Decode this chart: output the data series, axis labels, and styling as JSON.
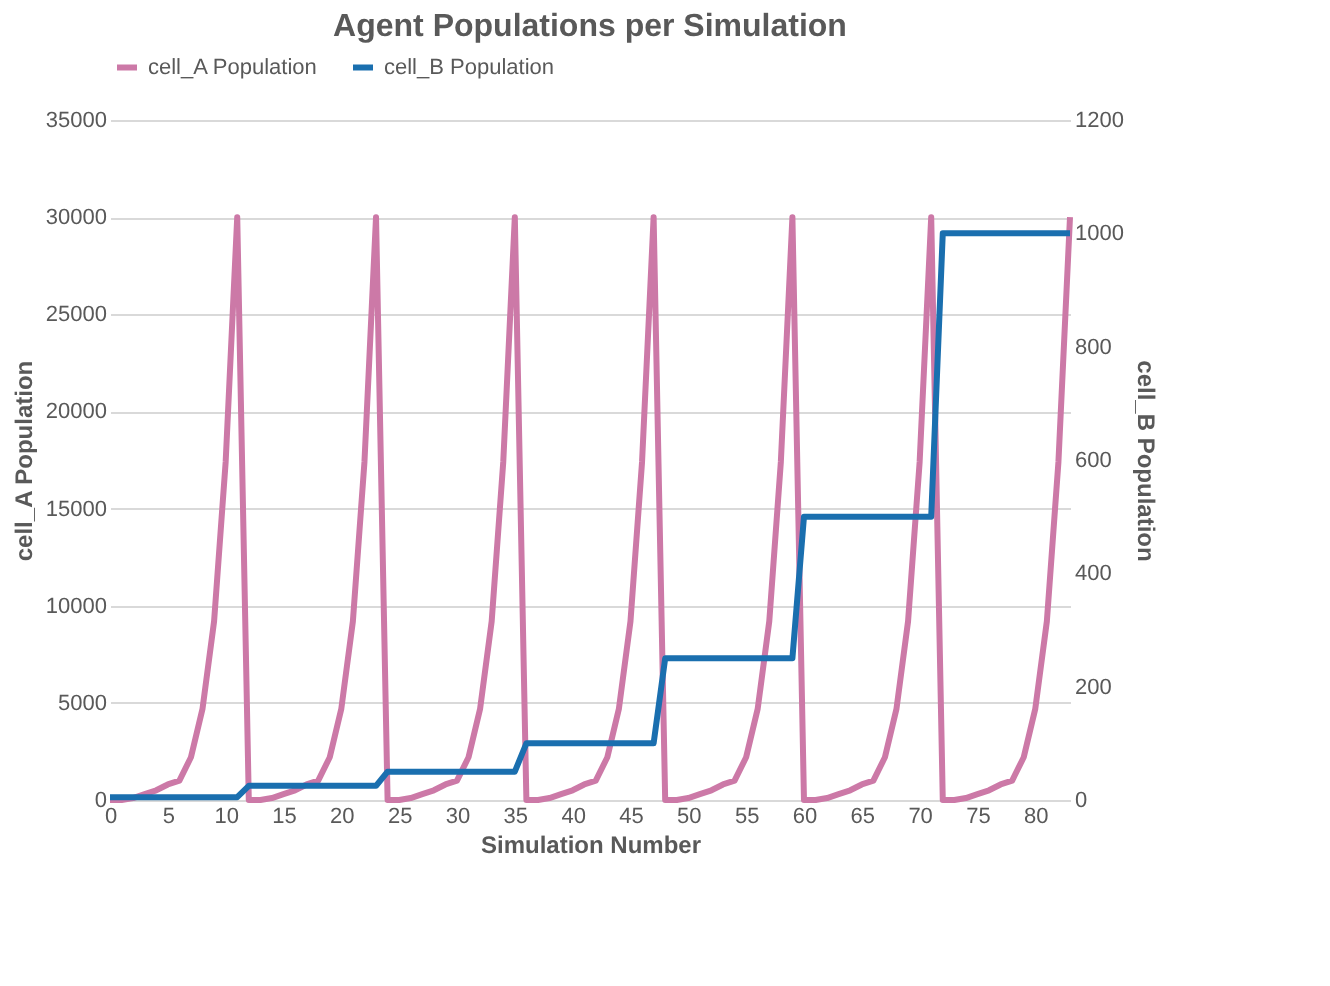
{
  "chart_data": {
    "type": "line",
    "title": "Agent Populations per Simulation",
    "xlabel": "Simulation Number",
    "ylabel": "cell_A Population",
    "y2label": "cell_B Population",
    "x": [
      0,
      1,
      2,
      3,
      4,
      5,
      6,
      7,
      8,
      9,
      10,
      11,
      12,
      13,
      14,
      15,
      16,
      17,
      18,
      19,
      20,
      21,
      22,
      23,
      24,
      25,
      26,
      27,
      28,
      29,
      30,
      31,
      32,
      33,
      34,
      35,
      36,
      37,
      38,
      39,
      40,
      41,
      42,
      43,
      44,
      45,
      46,
      47,
      48,
      49,
      50,
      51,
      52,
      53,
      54,
      55,
      56,
      57,
      58,
      59,
      60,
      61,
      62,
      63,
      64,
      65,
      66,
      67,
      68,
      69,
      70,
      71,
      72,
      73,
      74,
      75,
      76,
      77,
      78,
      79,
      80,
      81,
      82,
      83
    ],
    "series": [
      {
        "name": "cell_A Population",
        "color": "#cc79a7",
        "values": [
          0,
          0,
          100,
          300,
          500,
          800,
          1000,
          2200,
          4700,
          9200,
          17400,
          30000,
          0,
          0,
          100,
          300,
          500,
          800,
          1000,
          2200,
          4700,
          9200,
          17400,
          30000,
          0,
          0,
          100,
          300,
          500,
          800,
          1000,
          2200,
          4700,
          9200,
          17400,
          30000,
          0,
          0,
          100,
          300,
          500,
          800,
          1000,
          2200,
          4700,
          9200,
          17400,
          30000,
          0,
          0,
          100,
          300,
          500,
          800,
          1000,
          2200,
          4700,
          9200,
          17400,
          30000,
          0,
          0,
          100,
          300,
          500,
          800,
          1000,
          2200,
          4700,
          9200,
          17400,
          30000,
          0,
          0,
          100,
          300,
          500,
          800,
          1000,
          2200,
          4700,
          9200,
          17400,
          30000
        ]
      },
      {
        "name": "cell_B Population",
        "color": "#1a6faf",
        "axis": "y2",
        "values": [
          5,
          5,
          5,
          5,
          5,
          5,
          5,
          5,
          5,
          5,
          5,
          5,
          25,
          25,
          25,
          25,
          25,
          25,
          25,
          25,
          25,
          25,
          25,
          25,
          50,
          50,
          50,
          50,
          50,
          50,
          50,
          50,
          50,
          50,
          50,
          50,
          100,
          100,
          100,
          100,
          100,
          100,
          100,
          100,
          100,
          100,
          100,
          100,
          250,
          250,
          250,
          250,
          250,
          250,
          250,
          250,
          250,
          250,
          250,
          250,
          500,
          500,
          500,
          500,
          500,
          500,
          500,
          500,
          500,
          500,
          500,
          500,
          1000,
          1000,
          1000,
          1000,
          1000,
          1000,
          1000,
          1000,
          1000,
          1000,
          1000,
          1000
        ]
      }
    ],
    "xlim": [
      0,
      83
    ],
    "xticks": [
      0,
      5,
      10,
      15,
      20,
      25,
      30,
      35,
      40,
      45,
      50,
      55,
      60,
      65,
      70,
      75,
      80
    ],
    "ylim": [
      0,
      35000
    ],
    "yticks": [
      0,
      5000,
      10000,
      15000,
      20000,
      25000,
      30000,
      35000
    ],
    "y2lim": [
      0,
      1200
    ],
    "y2ticks": [
      0,
      200,
      400,
      600,
      800,
      1000,
      1200
    ],
    "grid": "y",
    "legend": "top",
    "marker": "none",
    "line_style": "solid"
  }
}
